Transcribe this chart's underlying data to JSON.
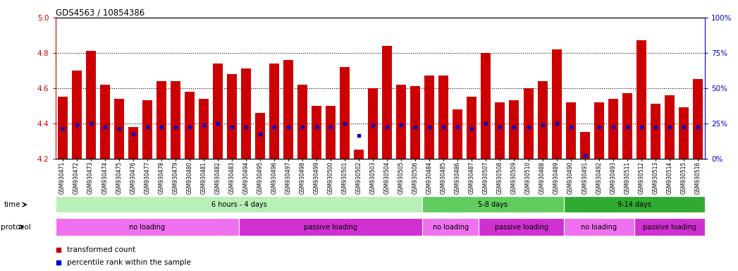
{
  "title": "GDS4563 / 10854386",
  "samples": [
    "GSM930471",
    "GSM930472",
    "GSM930473",
    "GSM930474",
    "GSM930475",
    "GSM930476",
    "GSM930477",
    "GSM930478",
    "GSM930479",
    "GSM930480",
    "GSM930481",
    "GSM930482",
    "GSM930483",
    "GSM930494",
    "GSM930495",
    "GSM930496",
    "GSM930497",
    "GSM930498",
    "GSM930499",
    "GSM930500",
    "GSM930501",
    "GSM930502",
    "GSM930503",
    "GSM930504",
    "GSM930505",
    "GSM930506",
    "GSM930484",
    "GSM930485",
    "GSM930486",
    "GSM930487",
    "GSM930507",
    "GSM930508",
    "GSM930509",
    "GSM930510",
    "GSM930488",
    "GSM930489",
    "GSM930490",
    "GSM930491",
    "GSM930492",
    "GSM930493",
    "GSM930511",
    "GSM930512",
    "GSM930513",
    "GSM930514",
    "GSM930515",
    "GSM930516"
  ],
  "bar_heights": [
    4.55,
    4.7,
    4.81,
    4.62,
    4.54,
    4.38,
    4.53,
    4.64,
    4.64,
    4.58,
    4.54,
    4.74,
    4.68,
    4.71,
    4.46,
    4.74,
    4.76,
    4.62,
    4.5,
    4.5,
    4.72,
    4.25,
    4.6,
    4.84,
    4.62,
    4.61,
    4.67,
    4.67,
    4.48,
    4.55,
    4.8,
    4.52,
    4.53,
    4.6,
    4.64,
    4.82,
    4.52,
    4.35,
    4.52,
    4.54,
    4.57,
    4.87,
    4.51,
    4.56,
    4.49,
    4.65
  ],
  "percentile_values": [
    4.37,
    4.39,
    4.4,
    4.38,
    4.37,
    4.34,
    4.38,
    4.38,
    4.38,
    4.38,
    4.39,
    4.4,
    4.38,
    4.38,
    4.34,
    4.38,
    4.38,
    4.38,
    4.38,
    4.38,
    4.4,
    4.33,
    4.39,
    4.38,
    4.39,
    4.38,
    4.38,
    4.38,
    4.38,
    4.37,
    4.4,
    4.38,
    4.38,
    4.38,
    4.39,
    4.4,
    4.38,
    4.22,
    4.38,
    4.38,
    4.38,
    4.38,
    4.38,
    4.38,
    4.38,
    4.38
  ],
  "ymin": 4.2,
  "ymax": 5.0,
  "yticks_left": [
    4.2,
    4.4,
    4.6,
    4.8,
    5.0
  ],
  "yticks_right": [
    0,
    25,
    50,
    75,
    100
  ],
  "bar_color": "#cc0000",
  "percentile_color": "#0000cc",
  "background_color": "#ffffff",
  "tick_label_bg": "#d8d8d8",
  "time_groups": [
    {
      "label": "6 hours - 4 days",
      "start": 0,
      "end": 25,
      "color": "#b8f0b8"
    },
    {
      "label": "5-8 days",
      "start": 26,
      "end": 35,
      "color": "#60cc60"
    },
    {
      "label": "9-14 days",
      "start": 36,
      "end": 45,
      "color": "#30aa30"
    }
  ],
  "protocol_groups": [
    {
      "label": "no loading",
      "start": 0,
      "end": 12,
      "color": "#f070f0"
    },
    {
      "label": "passive loading",
      "start": 13,
      "end": 25,
      "color": "#d030d0"
    },
    {
      "label": "no loading",
      "start": 26,
      "end": 29,
      "color": "#f070f0"
    },
    {
      "label": "passive loading",
      "start": 30,
      "end": 35,
      "color": "#d030d0"
    },
    {
      "label": "no loading",
      "start": 36,
      "end": 40,
      "color": "#f070f0"
    },
    {
      "label": "passive loading",
      "start": 41,
      "end": 45,
      "color": "#d030d0"
    }
  ],
  "legend": [
    {
      "label": "transformed count",
      "color": "#cc0000",
      "marker": "s"
    },
    {
      "label": "percentile rank within the sample",
      "color": "#0000cc",
      "marker": "s"
    }
  ]
}
